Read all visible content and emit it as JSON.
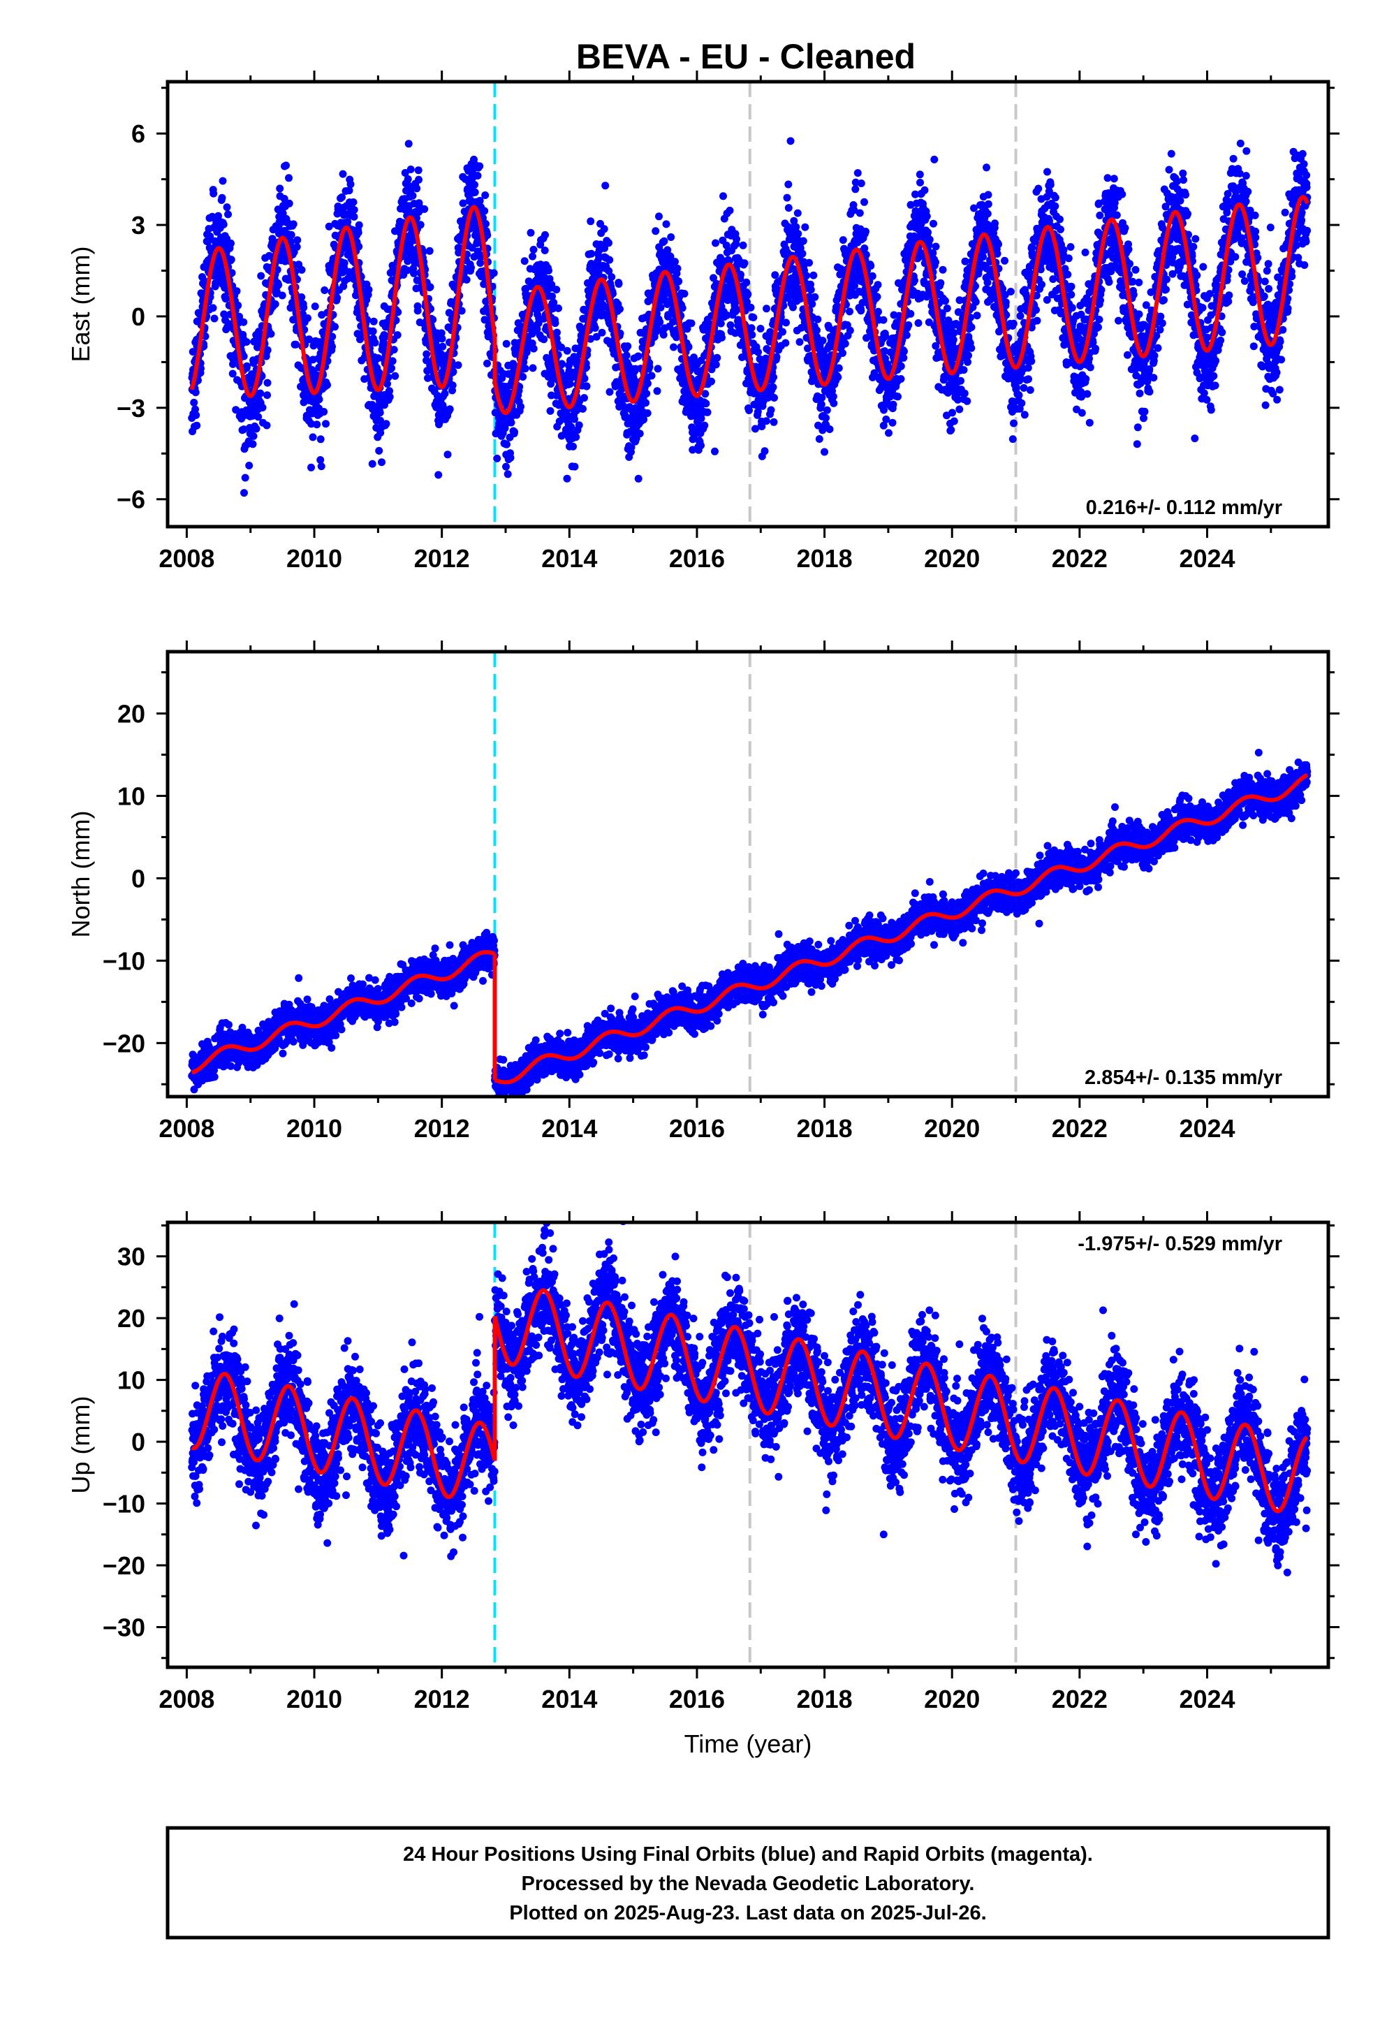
{
  "title": "BEVA  - EU - Cleaned",
  "colors": {
    "points": "#0000ff",
    "fit": "#ff0000",
    "equipment_break": "#00e5ff",
    "other_break": "#c8c8c8"
  },
  "breaks": {
    "equipment": [
      2012.83
    ],
    "other": [
      2016.83,
      2021.0
    ]
  },
  "time_range": [
    2008.08,
    2025.57
  ],
  "chart_data": [
    {
      "type": "scatter",
      "ylabel": "East (mm)",
      "xlabel": "",
      "xlim": [
        2007.7,
        2025.9
      ],
      "ylim": [
        -6.9,
        7.7
      ],
      "xticks": [
        2008,
        2010,
        2012,
        2014,
        2016,
        2018,
        2020,
        2022,
        2024
      ],
      "yticks": [
        -6,
        -3,
        0,
        3,
        6
      ],
      "rate": "0.216+/- 0.112 mm/yr",
      "rate_position": "bottom-right",
      "model": {
        "segments": [
          {
            "start": 2008.08,
            "end": 2012.83,
            "offset": -0.3,
            "slope": 0.216,
            "annual_amp": 2.4,
            "annual_peak": 2008.5,
            "amp_growth": 0.12
          },
          {
            "start": 2012.83,
            "end": 2025.57,
            "offset": -1.2,
            "slope": 0.216,
            "annual_amp": 2.0,
            "annual_peak": 2013.5,
            "amp_growth": 0.03
          }
        ],
        "noise_sd": 0.9
      }
    },
    {
      "type": "scatter",
      "ylabel": "North (mm)",
      "xlabel": "",
      "xlim": [
        2007.7,
        2025.9
      ],
      "ylim": [
        -26.5,
        27.5
      ],
      "xticks": [
        2008,
        2010,
        2012,
        2014,
        2016,
        2018,
        2020,
        2022,
        2024
      ],
      "yticks": [
        -20,
        -10,
        0,
        10,
        20
      ],
      "rate": "2.854+/- 0.135 mm/yr",
      "rate_position": "bottom-right",
      "model": {
        "segments": [
          {
            "start": 2008.08,
            "end": 2012.83,
            "offset": -22.8,
            "slope": 2.854,
            "annual_amp": 0.8,
            "annual_peak": 2008.6,
            "amp_growth": 0.0
          },
          {
            "start": 2012.83,
            "end": 2025.57,
            "offset": -24.6,
            "slope": 2.854,
            "annual_amp": 0.8,
            "annual_peak": 2013.6,
            "amp_growth": 0.0
          }
        ],
        "noise_sd": 1.1
      }
    },
    {
      "type": "scatter",
      "ylabel": "Up (mm)",
      "xlabel": "Time (year)",
      "xlim": [
        2007.7,
        2025.9
      ],
      "ylim": [
        -36.5,
        35.5
      ],
      "xticks": [
        2008,
        2010,
        2012,
        2014,
        2016,
        2018,
        2020,
        2022,
        2024
      ],
      "yticks": [
        -30,
        -20,
        -10,
        0,
        10,
        20,
        30
      ],
      "rate": "-1.975+/- 0.529 mm/yr",
      "rate_position": "top-right",
      "model": {
        "segments": [
          {
            "start": 2008.08,
            "end": 2012.83,
            "offset": 5.5,
            "slope": -1.975,
            "annual_amp": 6.5,
            "annual_peak": 2008.6,
            "amp_growth": 0.0
          },
          {
            "start": 2012.83,
            "end": 2025.57,
            "offset": 19.5,
            "slope": -1.975,
            "annual_amp": 6.5,
            "annual_peak": 2013.6,
            "amp_growth": 0.0
          }
        ],
        "noise_sd": 4.0
      }
    }
  ],
  "footer": {
    "line1": "24 Hour Positions Using Final Orbits (blue) and Rapid Orbits (magenta).",
    "line2": "Processed by the Nevada Geodetic Laboratory.",
    "line3": "Plotted on 2025-Aug-23. Last data on 2025-Jul-26."
  }
}
